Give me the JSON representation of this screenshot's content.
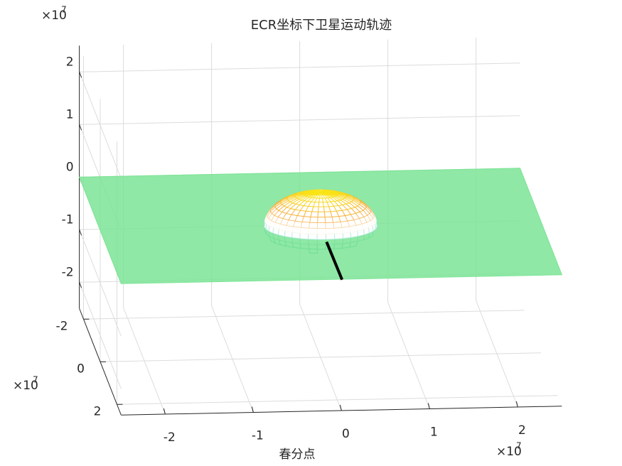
{
  "chart_data": {
    "type": "surface3d",
    "title": "ECR坐标下卫星运动轨迹",
    "xlabel": "春分点",
    "x_multiplier": {
      "base": "×10",
      "power": "7"
    },
    "y_multiplier": {
      "base": "×10",
      "power": "7"
    },
    "z_multiplier": {
      "base": "×10",
      "power": "7"
    },
    "xlim": [
      -2.5,
      2.5
    ],
    "ylim": [
      -2.5,
      2.5
    ],
    "zlim": [
      -2.5,
      2.5
    ],
    "xticks": [
      -2,
      -1,
      0,
      1,
      2
    ],
    "yticks": [
      -2,
      0,
      2
    ],
    "zticks": [
      -2,
      -1,
      0,
      1,
      2
    ],
    "grid": true,
    "plane": {
      "z": 0,
      "color": "#7be495"
    },
    "sphere": {
      "radius": 0.6378
    },
    "series": [
      {
        "name": "trajectory",
        "color": "#000000",
        "x": [
          -0.05,
          0.12
        ],
        "y": [
          1.24,
          1.3
        ],
        "z": [
          0.2,
          -0.5
        ]
      }
    ]
  }
}
